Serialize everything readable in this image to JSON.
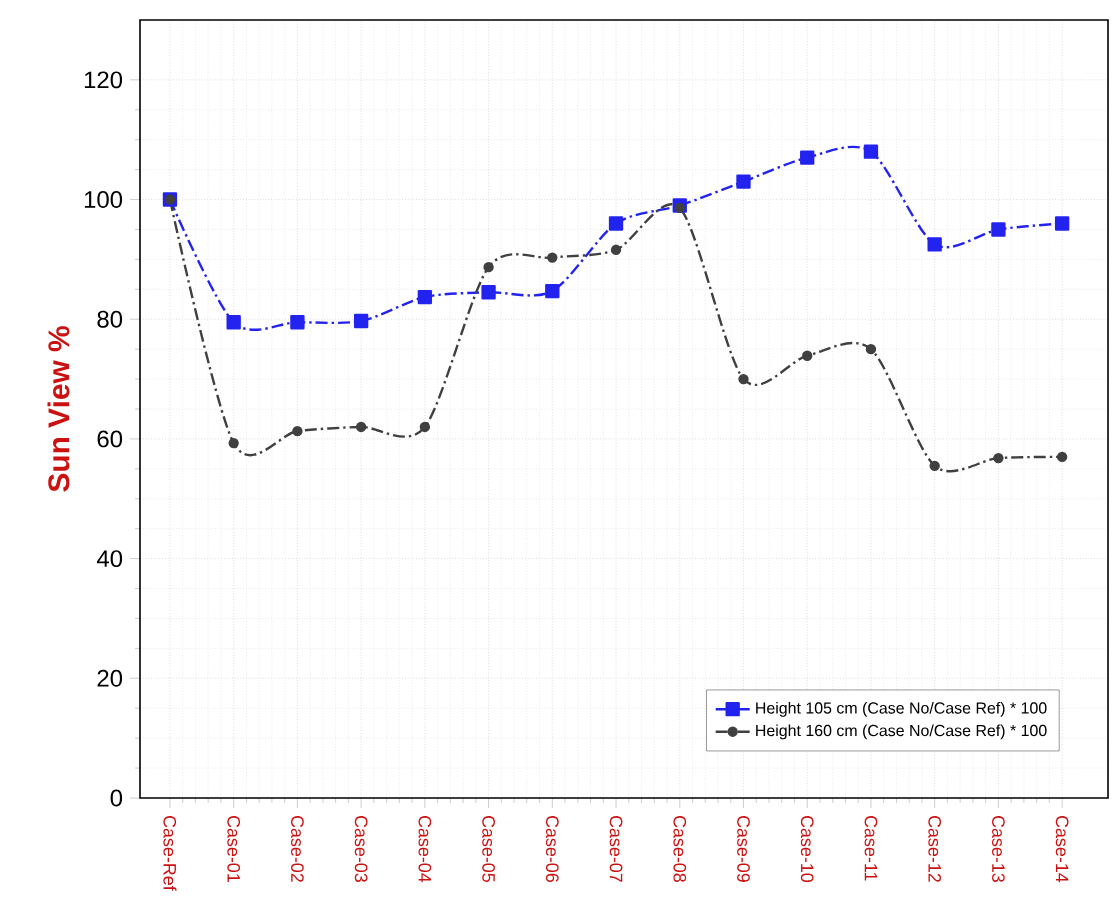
{
  "chart_data": {
    "type": "line",
    "ylabel": "Sun View %",
    "categories": [
      "Case-Ref",
      "Case-01",
      "Case-02",
      "Case-03",
      "Case-04",
      "Case-05",
      "Case-06",
      "Case-07",
      "Case-08",
      "Case-09",
      "Case-10",
      "Case-11",
      "Case-12",
      "Case-13",
      "Case-14"
    ],
    "series": [
      {
        "name": "Height 105 cm (Case No/Case Ref) * 100",
        "color": "#2323f0",
        "marker": "square",
        "line_style": "dashed",
        "values": [
          100,
          79.5,
          79.5,
          79.7,
          83.7,
          84.5,
          84.7,
          96,
          99,
          103,
          107,
          108,
          92.5,
          95,
          96
        ]
      },
      {
        "name": "Height 160 cm (Case No/Case Ref) * 100",
        "color": "#404040",
        "marker": "circle",
        "line_style": "dashed",
        "values": [
          100,
          59.3,
          61.3,
          62,
          62,
          88.7,
          90.3,
          91.6,
          98.6,
          70,
          73.9,
          75,
          55.5,
          56.8,
          57
        ]
      }
    ],
    "ylim": [
      0,
      130
    ],
    "yticks": [
      0,
      20,
      40,
      60,
      80,
      100,
      120
    ],
    "grid": true,
    "legend": "bottom right"
  }
}
